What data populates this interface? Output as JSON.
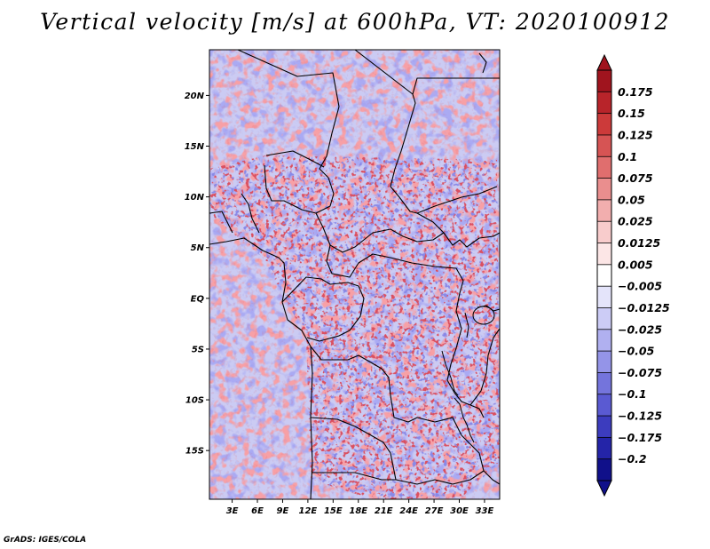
{
  "title": "Vertical velocity [m/s] at 600hPa, VT: 2020100912",
  "footer": "GrADS: IGES/COLA",
  "map": {
    "lat_labels": [
      "20N",
      "15N",
      "10N",
      "5N",
      "EQ",
      "5S",
      "10S",
      "15S"
    ],
    "lat_values": [
      20,
      15,
      10,
      5,
      0,
      -5,
      -10,
      -15
    ],
    "lon_labels": [
      "3E",
      "6E",
      "9E",
      "12E",
      "15E",
      "18E",
      "21E",
      "24E",
      "27E",
      "30E",
      "33E"
    ],
    "lon_values": [
      3,
      6,
      9,
      12,
      15,
      18,
      21,
      24,
      27,
      30,
      33
    ],
    "lat_range": [
      -19.8,
      24.5
    ],
    "lon_range": [
      0.3,
      34.8
    ]
  },
  "colorbar": {
    "labels": [
      "0.175",
      "0.15",
      "0.125",
      "0.1",
      "0.075",
      "0.05",
      "0.025",
      "0.0125",
      "0.005",
      "−0.005",
      "−0.0125",
      "−0.025",
      "−0.05",
      "−0.075",
      "−0.1",
      "−0.125",
      "−0.175",
      "−0.2"
    ],
    "colors": [
      "#a0141e",
      "#b8242a",
      "#cc3a3a",
      "#d65454",
      "#e06e6e",
      "#ea8e8e",
      "#f2aeae",
      "#f8cccc",
      "#fce6e6",
      "#ffffff",
      "#e4e4fa",
      "#ccccf6",
      "#b0b0f0",
      "#9494e8",
      "#7474dc",
      "#5a5ad2",
      "#3c3cbe",
      "#2424a8",
      "#10108a"
    ]
  }
}
